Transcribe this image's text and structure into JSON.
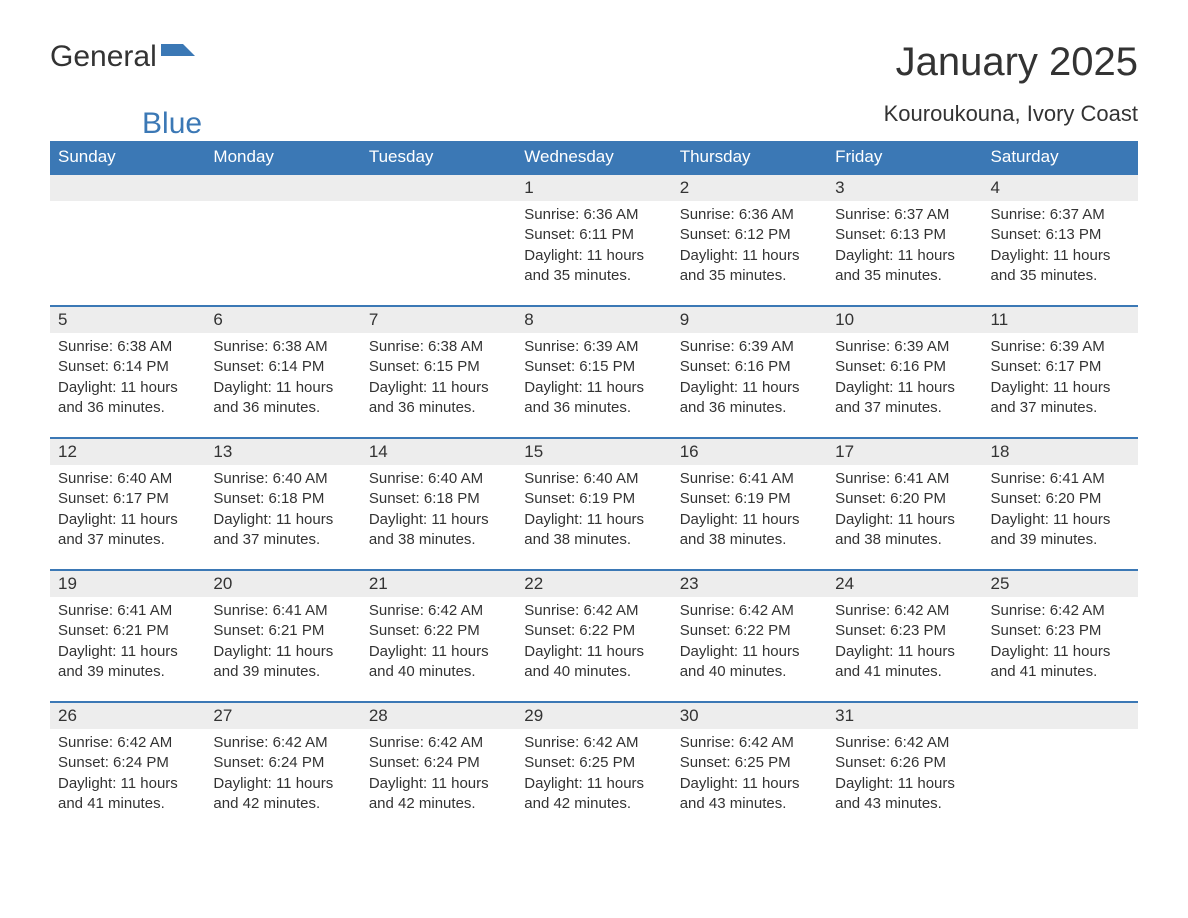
{
  "logo": {
    "part1": "General",
    "part2": "Blue"
  },
  "title": "January 2025",
  "location": "Kouroukouna, Ivory Coast",
  "colors": {
    "header_bg": "#3b78b5",
    "header_text": "#ffffff",
    "daynum_bg": "#ededed",
    "daynum_border": "#3b78b5",
    "body_text": "#333333",
    "page_bg": "#ffffff",
    "logo_accent": "#3b78b5"
  },
  "typography": {
    "month_title_fontsize": 40,
    "location_fontsize": 22,
    "weekday_fontsize": 17,
    "daynum_fontsize": 17,
    "body_fontsize": 15
  },
  "weekdays": [
    "Sunday",
    "Monday",
    "Tuesday",
    "Wednesday",
    "Thursday",
    "Friday",
    "Saturday"
  ],
  "labels": {
    "sunrise_prefix": "Sunrise: ",
    "sunset_prefix": "Sunset: ",
    "daylight_prefix": "Daylight: ",
    "daylight_unit_hours": " hours and ",
    "daylight_unit_minutes": " minutes."
  },
  "weeks": [
    [
      null,
      null,
      null,
      {
        "n": "1",
        "sunrise": "6:36 AM",
        "sunset": "6:11 PM",
        "dh": "11",
        "dm": "35"
      },
      {
        "n": "2",
        "sunrise": "6:36 AM",
        "sunset": "6:12 PM",
        "dh": "11",
        "dm": "35"
      },
      {
        "n": "3",
        "sunrise": "6:37 AM",
        "sunset": "6:13 PM",
        "dh": "11",
        "dm": "35"
      },
      {
        "n": "4",
        "sunrise": "6:37 AM",
        "sunset": "6:13 PM",
        "dh": "11",
        "dm": "35"
      }
    ],
    [
      {
        "n": "5",
        "sunrise": "6:38 AM",
        "sunset": "6:14 PM",
        "dh": "11",
        "dm": "36"
      },
      {
        "n": "6",
        "sunrise": "6:38 AM",
        "sunset": "6:14 PM",
        "dh": "11",
        "dm": "36"
      },
      {
        "n": "7",
        "sunrise": "6:38 AM",
        "sunset": "6:15 PM",
        "dh": "11",
        "dm": "36"
      },
      {
        "n": "8",
        "sunrise": "6:39 AM",
        "sunset": "6:15 PM",
        "dh": "11",
        "dm": "36"
      },
      {
        "n": "9",
        "sunrise": "6:39 AM",
        "sunset": "6:16 PM",
        "dh": "11",
        "dm": "36"
      },
      {
        "n": "10",
        "sunrise": "6:39 AM",
        "sunset": "6:16 PM",
        "dh": "11",
        "dm": "37"
      },
      {
        "n": "11",
        "sunrise": "6:39 AM",
        "sunset": "6:17 PM",
        "dh": "11",
        "dm": "37"
      }
    ],
    [
      {
        "n": "12",
        "sunrise": "6:40 AM",
        "sunset": "6:17 PM",
        "dh": "11",
        "dm": "37"
      },
      {
        "n": "13",
        "sunrise": "6:40 AM",
        "sunset": "6:18 PM",
        "dh": "11",
        "dm": "37"
      },
      {
        "n": "14",
        "sunrise": "6:40 AM",
        "sunset": "6:18 PM",
        "dh": "11",
        "dm": "38"
      },
      {
        "n": "15",
        "sunrise": "6:40 AM",
        "sunset": "6:19 PM",
        "dh": "11",
        "dm": "38"
      },
      {
        "n": "16",
        "sunrise": "6:41 AM",
        "sunset": "6:19 PM",
        "dh": "11",
        "dm": "38"
      },
      {
        "n": "17",
        "sunrise": "6:41 AM",
        "sunset": "6:20 PM",
        "dh": "11",
        "dm": "38"
      },
      {
        "n": "18",
        "sunrise": "6:41 AM",
        "sunset": "6:20 PM",
        "dh": "11",
        "dm": "39"
      }
    ],
    [
      {
        "n": "19",
        "sunrise": "6:41 AM",
        "sunset": "6:21 PM",
        "dh": "11",
        "dm": "39"
      },
      {
        "n": "20",
        "sunrise": "6:41 AM",
        "sunset": "6:21 PM",
        "dh": "11",
        "dm": "39"
      },
      {
        "n": "21",
        "sunrise": "6:42 AM",
        "sunset": "6:22 PM",
        "dh": "11",
        "dm": "40"
      },
      {
        "n": "22",
        "sunrise": "6:42 AM",
        "sunset": "6:22 PM",
        "dh": "11",
        "dm": "40"
      },
      {
        "n": "23",
        "sunrise": "6:42 AM",
        "sunset": "6:22 PM",
        "dh": "11",
        "dm": "40"
      },
      {
        "n": "24",
        "sunrise": "6:42 AM",
        "sunset": "6:23 PM",
        "dh": "11",
        "dm": "41"
      },
      {
        "n": "25",
        "sunrise": "6:42 AM",
        "sunset": "6:23 PM",
        "dh": "11",
        "dm": "41"
      }
    ],
    [
      {
        "n": "26",
        "sunrise": "6:42 AM",
        "sunset": "6:24 PM",
        "dh": "11",
        "dm": "41"
      },
      {
        "n": "27",
        "sunrise": "6:42 AM",
        "sunset": "6:24 PM",
        "dh": "11",
        "dm": "42"
      },
      {
        "n": "28",
        "sunrise": "6:42 AM",
        "sunset": "6:24 PM",
        "dh": "11",
        "dm": "42"
      },
      {
        "n": "29",
        "sunrise": "6:42 AM",
        "sunset": "6:25 PM",
        "dh": "11",
        "dm": "42"
      },
      {
        "n": "30",
        "sunrise": "6:42 AM",
        "sunset": "6:25 PM",
        "dh": "11",
        "dm": "43"
      },
      {
        "n": "31",
        "sunrise": "6:42 AM",
        "sunset": "6:26 PM",
        "dh": "11",
        "dm": "43"
      },
      null
    ]
  ]
}
